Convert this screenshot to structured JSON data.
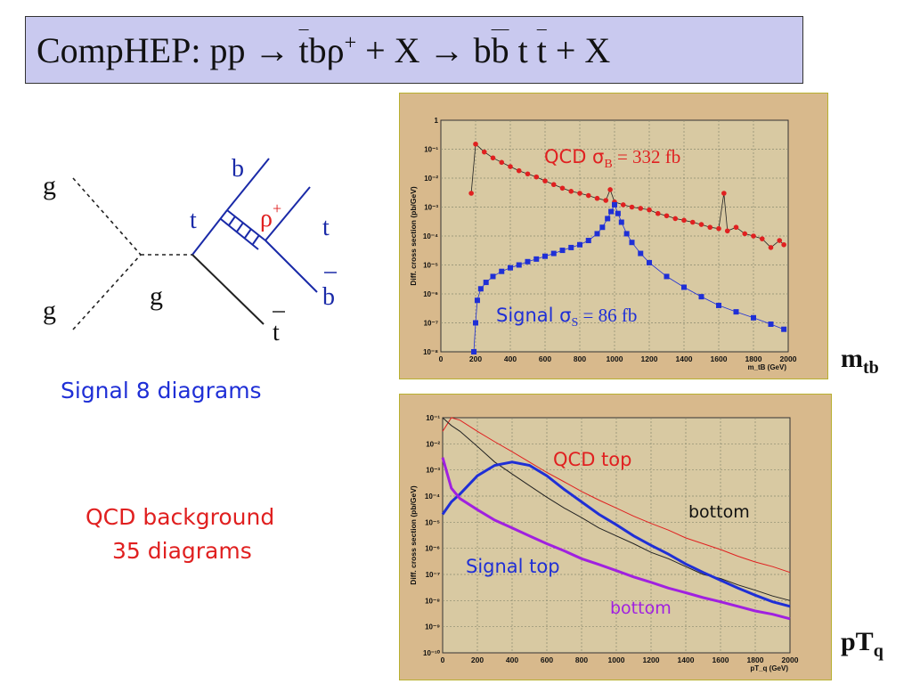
{
  "title": {
    "prefix": "CompHEP:  pp  → ",
    "tbar": "t",
    "b": "bρ",
    "rho_charge": "+",
    "plus_x1": " + X → b",
    "bbar": "b",
    "t": " t ",
    "tbar2": "t",
    "plus_x2": " + X"
  },
  "feynman": {
    "g_in1": "g",
    "g_in2": "g",
    "g_mid": "g",
    "t_label": "t",
    "b_label": "b",
    "rho_label": "ρ",
    "rho_charge": "+",
    "t_out": "t",
    "bbar_out": "b",
    "tbar_out": "t"
  },
  "captions": {
    "signal": "Signal  8 diagrams",
    "qcd_line1": "QCD background",
    "qcd_line2": "35 diagrams"
  },
  "side_labels": {
    "mtb_main": "m",
    "mtb_sub": "tb",
    "ptq_main": "pT",
    "ptq_sub": "q"
  },
  "colors": {
    "title_bg": "#c9c9ef",
    "plot_bg": "#d8b98c",
    "signal": "#1f2fd6",
    "qcd": "#e02020",
    "bottom_qcd": "#222222",
    "bottom_signal": "#a020e0"
  },
  "chart_data": [
    {
      "type": "scatter",
      "xlabel": "m_tB (GeV)",
      "ylabel": "Diff. cross section (pb/GeV)",
      "xlim": [
        0,
        2000
      ],
      "ylim_log10": [
        -8,
        0
      ],
      "y_scale": "log",
      "grid": true,
      "xticks": [
        0,
        200,
        400,
        600,
        800,
        1000,
        1200,
        1400,
        1600,
        1800,
        2000
      ],
      "yticks": [
        {
          "label": "10⁻⁸",
          "value": 1e-08
        },
        {
          "label": "10⁻⁷",
          "value": 1e-07
        },
        {
          "label": "10⁻⁶",
          "value": 1e-06
        },
        {
          "label": "10⁻⁵",
          "value": 1e-05
        },
        {
          "label": "10⁻⁴",
          "value": 0.0001
        },
        {
          "label": "10⁻³",
          "value": 0.001
        },
        {
          "label": "10⁻²",
          "value": 0.01
        },
        {
          "label": "10⁻¹",
          "value": 0.1
        },
        {
          "label": "1",
          "value": 1
        }
      ],
      "annotations": {
        "qcd_text": "QCD  σ",
        "qcd_sub": "B",
        "qcd_value": " = 332 fb",
        "signal_text": "Signal σ",
        "signal_sub": "S",
        "signal_value": " = 86 fb"
      },
      "series": [
        {
          "name": "QCD",
          "color": "#e02020",
          "style": "markers",
          "x": [
            175,
            200,
            250,
            300,
            350,
            400,
            450,
            500,
            550,
            600,
            650,
            700,
            750,
            800,
            850,
            900,
            950,
            975,
            1000,
            1050,
            1100,
            1150,
            1200,
            1250,
            1300,
            1350,
            1400,
            1450,
            1500,
            1550,
            1600,
            1630,
            1650,
            1700,
            1750,
            1800,
            1850,
            1900,
            1950,
            1975
          ],
          "y": [
            0.003,
            0.15,
            0.08,
            0.05,
            0.035,
            0.025,
            0.018,
            0.014,
            0.011,
            0.008,
            0.006,
            0.0045,
            0.0035,
            0.003,
            0.0025,
            0.002,
            0.0017,
            0.004,
            0.0015,
            0.0012,
            0.001,
            0.0009,
            0.0008,
            0.0006,
            0.0005,
            0.0004,
            0.00035,
            0.0003,
            0.00025,
            0.0002,
            0.00018,
            0.003,
            0.00015,
            0.0002,
            0.00012,
            0.0001,
            8e-05,
            4e-05,
            7e-05,
            5e-05
          ]
        },
        {
          "name": "Signal",
          "color": "#1f2fd6",
          "style": "markers",
          "x": [
            190,
            200,
            210,
            230,
            260,
            300,
            350,
            400,
            450,
            500,
            550,
            600,
            650,
            700,
            750,
            800,
            850,
            900,
            930,
            960,
            980,
            1000,
            1020,
            1040,
            1070,
            1100,
            1150,
            1200,
            1300,
            1400,
            1500,
            1600,
            1700,
            1800,
            1900,
            1975
          ],
          "y": [
            1e-08,
            1e-07,
            6e-07,
            1.5e-06,
            2.5e-06,
            4e-06,
            6e-06,
            8e-06,
            1e-05,
            1.3e-05,
            1.6e-05,
            2e-05,
            2.5e-05,
            3.2e-05,
            4e-05,
            5e-05,
            7e-05,
            0.00012,
            0.0002,
            0.0004,
            0.0007,
            0.0012,
            0.0006,
            0.0003,
            0.00012,
            6e-05,
            2.5e-05,
            1.2e-05,
            4e-06,
            1.7e-06,
            8e-07,
            4e-07,
            2.4e-07,
            1.5e-07,
            9e-08,
            6e-08
          ]
        }
      ]
    },
    {
      "type": "line",
      "xlabel": "pT_q (GeV)",
      "ylabel": "Diff. cross section (pb/GeV)",
      "xlim": [
        0,
        2000
      ],
      "ylim_log10": [
        -10,
        -1
      ],
      "y_scale": "log",
      "grid": true,
      "xticks": [
        0,
        200,
        400,
        600,
        800,
        1000,
        1200,
        1400,
        1600,
        1800,
        2000
      ],
      "yticks": [
        {
          "label": "10⁻¹⁰",
          "value": 1e-10
        },
        {
          "label": "10⁻⁹",
          "value": 1e-09
        },
        {
          "label": "10⁻⁸",
          "value": 1e-08
        },
        {
          "label": "10⁻⁷",
          "value": 1e-07
        },
        {
          "label": "10⁻⁶",
          "value": 1e-06
        },
        {
          "label": "10⁻⁵",
          "value": 1e-05
        },
        {
          "label": "10⁻⁴",
          "value": 0.0001
        },
        {
          "label": "10⁻³",
          "value": 0.001
        },
        {
          "label": "10⁻²",
          "value": 0.01
        },
        {
          "label": "10⁻¹",
          "value": 0.1
        }
      ],
      "annotations": {
        "qcd_top": "QCD top",
        "bottom_qcd": "bottom",
        "signal_top": "Signal top",
        "bottom_signal": "bottom"
      },
      "series": [
        {
          "name": "QCD top",
          "color": "#e02020",
          "x": [
            0,
            50,
            100,
            200,
            300,
            400,
            500,
            600,
            700,
            800,
            900,
            1000,
            1100,
            1200,
            1300,
            1400,
            1500,
            1600,
            1700,
            1800,
            1900,
            2000
          ],
          "y": [
            0.03,
            0.1,
            0.08,
            0.03,
            0.012,
            0.005,
            0.002,
            0.0008,
            0.00035,
            0.00015,
            7e-05,
            3.5e-05,
            1.7e-05,
            9e-06,
            5e-06,
            2.5e-06,
            1.5e-06,
            9e-07,
            5e-07,
            3e-07,
            2e-07,
            1.2e-07
          ]
        },
        {
          "name": "bottom",
          "color": "#222222",
          "x": [
            0,
            50,
            100,
            200,
            300,
            400,
            500,
            600,
            700,
            800,
            900,
            1000,
            1100,
            1200,
            1300,
            1400,
            1500,
            1600,
            1700,
            1800,
            1900,
            2000
          ],
          "y": [
            0.1,
            0.05,
            0.03,
            0.008,
            0.002,
            0.0007,
            0.00025,
            9e-05,
            3.5e-05,
            1.5e-05,
            6e-06,
            3e-06,
            1.5e-06,
            7e-07,
            4e-07,
            2e-07,
            1e-07,
            7e-08,
            4e-08,
            2.5e-08,
            1.5e-08,
            1e-08
          ]
        },
        {
          "name": "Signal top",
          "color": "#1f2fd6",
          "x": [
            0,
            50,
            100,
            200,
            300,
            400,
            500,
            600,
            700,
            800,
            900,
            1000,
            1100,
            1200,
            1300,
            1400,
            1500,
            1600,
            1700,
            1800,
            1900,
            2000
          ],
          "y": [
            2e-05,
            6e-05,
            0.00012,
            0.0006,
            0.0015,
            0.002,
            0.0015,
            0.0006,
            0.00018,
            6e-05,
            2e-05,
            8e-06,
            3e-06,
            1.3e-06,
            6e-07,
            2.5e-07,
            1.2e-07,
            6e-08,
            3e-08,
            1.6e-08,
            9e-09,
            6e-09
          ]
        },
        {
          "name": "bottom",
          "color": "#a020e0",
          "x": [
            0,
            50,
            100,
            200,
            300,
            400,
            500,
            600,
            700,
            800,
            900,
            1000,
            1100,
            1200,
            1300,
            1400,
            1500,
            1600,
            1700,
            1800,
            1900,
            2000
          ],
          "y": [
            0.003,
            0.0002,
            8e-05,
            3e-05,
            1.2e-05,
            6e-06,
            3e-06,
            1.5e-06,
            8e-07,
            4e-07,
            2.4e-07,
            1.4e-07,
            8e-08,
            5e-08,
            3e-08,
            2e-08,
            1.3e-08,
            9e-09,
            6e-09,
            4e-09,
            3e-09,
            2e-09
          ]
        }
      ]
    }
  ]
}
